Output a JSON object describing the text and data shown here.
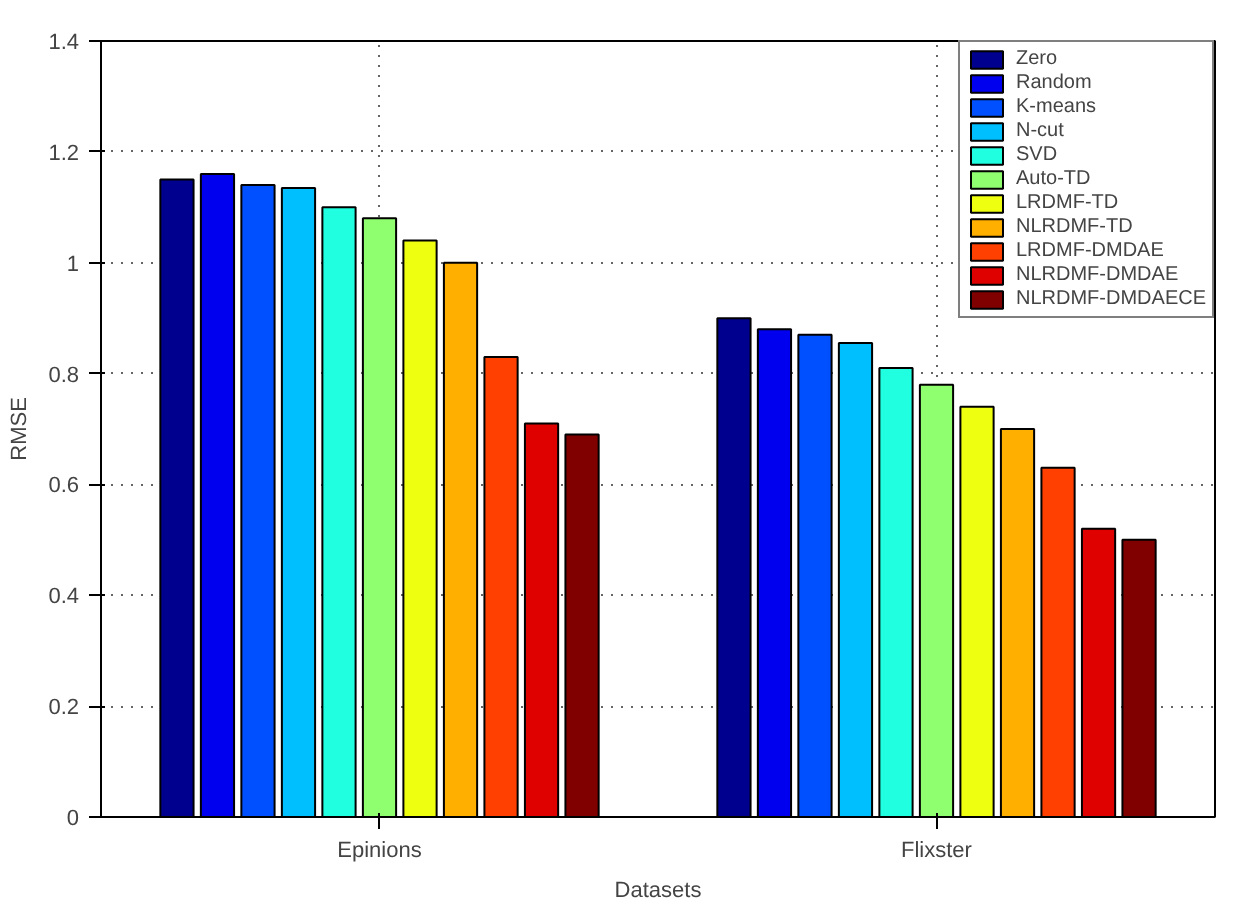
{
  "chart_data": {
    "type": "bar",
    "xlabel": "Datasets",
    "ylabel": "RMSE",
    "categories": [
      "Epinions",
      "Flixster"
    ],
    "series": [
      {
        "name": "Zero",
        "color": "#00008f",
        "values": [
          1.15,
          0.9
        ]
      },
      {
        "name": "Random",
        "color": "#0000ef",
        "values": [
          1.16,
          0.88
        ]
      },
      {
        "name": "K-means",
        "color": "#0050ff",
        "values": [
          1.14,
          0.87
        ]
      },
      {
        "name": "N-cut",
        "color": "#00bfff",
        "values": [
          1.135,
          0.855
        ]
      },
      {
        "name": "SVD",
        "color": "#20ffdf",
        "values": [
          1.1,
          0.81
        ]
      },
      {
        "name": "Auto-TD",
        "color": "#8fff70",
        "values": [
          1.08,
          0.78
        ]
      },
      {
        "name": "LRDMF-TD",
        "color": "#efff10",
        "values": [
          1.04,
          0.74
        ]
      },
      {
        "name": "NLRDMF-TD",
        "color": "#ffaf00",
        "values": [
          1.0,
          0.7
        ]
      },
      {
        "name": "LRDMF-DMDAE",
        "color": "#ff4000",
        "values": [
          0.83,
          0.63
        ]
      },
      {
        "name": "NLRDMF-DMDAE",
        "color": "#df0000",
        "values": [
          0.71,
          0.52
        ]
      },
      {
        "name": "NLRDMF-DMDAECE",
        "color": "#800000",
        "values": [
          0.69,
          0.5
        ]
      }
    ],
    "ylim": [
      0,
      1.4
    ],
    "yticks": [
      0,
      0.2,
      0.4,
      0.6,
      0.8,
      1,
      1.2,
      1.4
    ],
    "grid": true,
    "legend": "top right"
  }
}
